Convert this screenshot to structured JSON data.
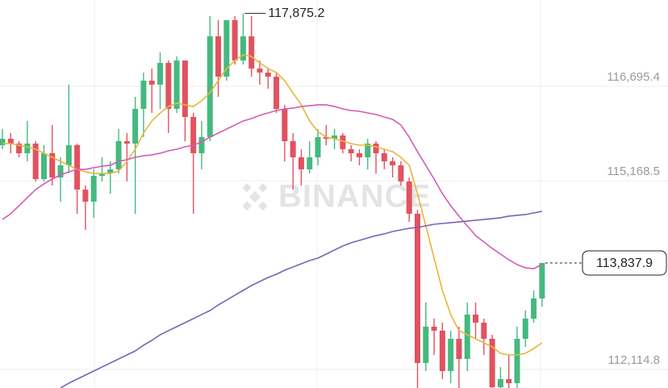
{
  "chart_data": {
    "type": "candlestick",
    "watermark": "BINANCE",
    "ylim": [
      111815,
      118092
    ],
    "yticks": [
      {
        "value": 116695.4,
        "label": "116,695.4"
      },
      {
        "value": 115168.5,
        "label": "115,168.5"
      },
      {
        "value": 112114.8,
        "label": "112,114.8"
      }
    ],
    "grid": true,
    "up_color": "#45b97f",
    "down_color": "#e1525f",
    "open": [
      115743,
      115847,
      115769,
      115613,
      115769,
      115195,
      115613,
      115221,
      115417,
      115743,
      115025,
      114830,
      115247,
      115286,
      115352,
      115808,
      115769,
      116330,
      116787,
      116722,
      117074,
      116330,
      117113,
      116200,
      115613,
      115874,
      117505,
      116852,
      117766,
      117113,
      117505,
      116983,
      116918,
      116852,
      116330,
      115808,
      115547,
      115352,
      115547,
      115874,
      115847,
      115900,
      115678,
      115613,
      115547,
      115769,
      115613,
      115482,
      115417,
      115156,
      114634,
      112220,
      112807,
      112742,
      112089,
      112611,
      112285,
      113003,
      112872,
      112611,
      111828,
      111959,
      111893,
      112611,
      112937,
      113264
    ],
    "high": [
      116004,
      115939,
      115808,
      116135,
      115808,
      115743,
      116069,
      115547,
      116722,
      115769,
      115091,
      115352,
      115547,
      115482,
      116004,
      115939,
      116526,
      116918,
      116983,
      117244,
      117113,
      117179,
      117113,
      116265,
      116135,
      117831,
      117766,
      117766,
      117831,
      117875.2,
      117831,
      117113,
      116983,
      116918,
      116396,
      115939,
      115678,
      115808,
      116004,
      116069,
      116004,
      115939,
      115743,
      115678,
      115847,
      115808,
      115678,
      115547,
      115482,
      115221,
      114699,
      113198,
      112937,
      112872,
      112742,
      112807,
      113198,
      113198,
      112937,
      112676,
      112154,
      112350,
      112807,
      113068,
      113394,
      113838
    ],
    "low": [
      115678,
      115613,
      115547,
      115482,
      115156,
      115156,
      115091,
      114830,
      115286,
      114634,
      114373,
      114569,
      115156,
      114960,
      115286,
      115156,
      114634,
      115874,
      116265,
      116330,
      115939,
      116265,
      115808,
      114634,
      115352,
      115808,
      116526,
      116787,
      117048,
      117048,
      116852,
      116722,
      116657,
      116265,
      115482,
      115025,
      115091,
      115286,
      115417,
      115743,
      115678,
      115613,
      115482,
      115417,
      115352,
      115286,
      115352,
      115221,
      115091,
      114503,
      111815,
      112089,
      112350,
      111959,
      111893,
      111815,
      112089,
      112611,
      112350,
      111815,
      111815,
      111815,
      111815,
      112481,
      112872,
      113133
    ],
    "close": [
      115847,
      115769,
      115613,
      115769,
      115195,
      115613,
      115221,
      115417,
      115743,
      115025,
      114830,
      115247,
      115286,
      115352,
      115808,
      115769,
      116330,
      116787,
      116722,
      117074,
      116330,
      117113,
      116200,
      115613,
      115874,
      117505,
      116852,
      117766,
      117113,
      117505,
      116983,
      116918,
      116852,
      116330,
      115808,
      115547,
      115352,
      115547,
      115874,
      115847,
      115900,
      115678,
      115613,
      115547,
      115769,
      115613,
      115482,
      115417,
      115156,
      114634,
      112220,
      112807,
      112742,
      112089,
      112611,
      112285,
      113003,
      112872,
      112611,
      111828,
      111959,
      111893,
      112611,
      112937,
      113264,
      113837.9
    ],
    "moving_averages": [
      {
        "color": "#e9b53b",
        "values": [
          115769,
          115769,
          115743,
          115717,
          115678,
          115613,
          115547,
          115482,
          115417,
          115352,
          115312,
          115286,
          115286,
          115286,
          115325,
          115482,
          115678,
          115939,
          116135,
          116265,
          116369,
          116422,
          116396,
          116369,
          116461,
          116591,
          116787,
          116983,
          117113,
          117205,
          117179,
          117074,
          116983,
          116918,
          116787,
          116591,
          116396,
          116135,
          115965,
          115874,
          115847,
          115808,
          115769,
          115743,
          115743,
          115717,
          115678,
          115639,
          115547,
          115417,
          114960,
          114438,
          113916,
          113394,
          113003,
          112742,
          112676,
          112611,
          112546,
          112481,
          112376,
          112350,
          112350,
          112376,
          112454,
          112546
        ]
      },
      {
        "color": "#d45bb5",
        "values": [
          114542,
          114634,
          114764,
          114895,
          115025,
          115117,
          115195,
          115260,
          115312,
          115352,
          115352,
          115378,
          115404,
          115417,
          115482,
          115508,
          115547,
          115573,
          115586,
          115613,
          115652,
          115678,
          115717,
          115743,
          115795,
          115874,
          115939,
          116004,
          116069,
          116135,
          116174,
          116226,
          116265,
          116304,
          116330,
          116343,
          116369,
          116382,
          116396,
          116396,
          116369,
          116330,
          116304,
          116291,
          116265,
          116239,
          116200,
          116161,
          116069,
          115874,
          115639,
          115417,
          115195,
          114960,
          114764,
          114595,
          114438,
          114281,
          114177,
          114073,
          113981,
          113890,
          113812,
          113759,
          113746,
          113812
        ]
      },
      {
        "color": "#7c62b4",
        "values": [
          null,
          null,
          null,
          null,
          null,
          null,
          null,
          111815,
          111893,
          111959,
          112024,
          112089,
          112154,
          112220,
          112285,
          112350,
          112415,
          112507,
          112585,
          112676,
          112742,
          112807,
          112872,
          112937,
          113003,
          113068,
          113159,
          113237,
          113316,
          113394,
          113472,
          113538,
          113603,
          113655,
          113720,
          113772,
          113825,
          113877,
          113916,
          113981,
          114047,
          114112,
          114164,
          114203,
          114242,
          114281,
          114308,
          114347,
          114373,
          114399,
          114412,
          114438,
          114464,
          114477,
          114490,
          114503,
          114516,
          114529,
          114542,
          114555,
          114569,
          114595,
          114608,
          114621,
          114647,
          114673
        ]
      }
    ],
    "max_annotation": {
      "value": 117875.2,
      "label": "117,875.2"
    },
    "last_price": {
      "value": 113837.9,
      "label": "113,837.9"
    }
  }
}
